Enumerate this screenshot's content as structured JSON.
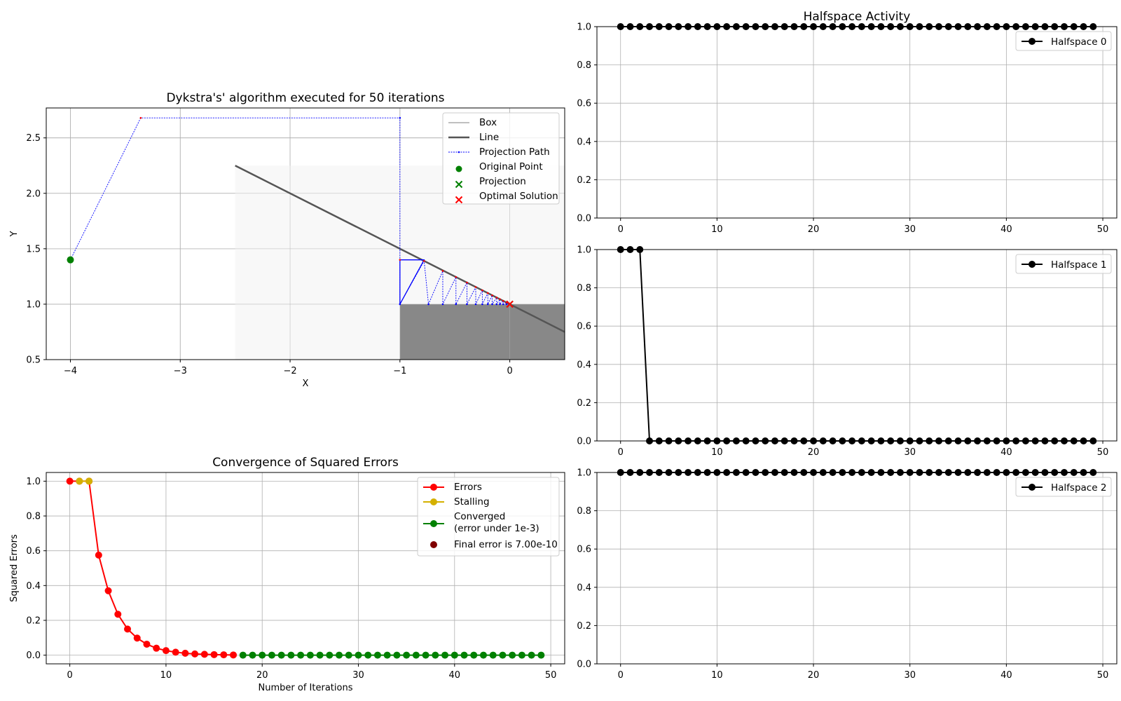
{
  "chart_data": [
    {
      "id": "dykstra",
      "type": "line",
      "title": "Dykstra's' algorithm executed for 50 iterations",
      "xlabel": "X",
      "ylabel": "Y",
      "xlim": [
        -4.22,
        0.5
      ],
      "ylim": [
        0.5,
        2.77
      ],
      "xticks": [
        -4,
        -3,
        -2,
        -1,
        0
      ],
      "xtick_labels": [
        "−4",
        "−3",
        "−2",
        "−1",
        "0"
      ],
      "yticks": [
        0.5,
        1.0,
        1.5,
        2.0,
        2.5
      ],
      "ytick_labels": [
        "0.5",
        "1.0",
        "1.5",
        "2.0",
        "2.5"
      ],
      "grid": true,
      "legend_position": "top-right",
      "legend": [
        "Box",
        "Line",
        "Projection Path",
        "Original Point",
        "Projection",
        "Optimal Solution"
      ],
      "box": {
        "x": [
          -2.5,
          0.5
        ],
        "y": [
          0.5,
          2.25
        ]
      },
      "halfspace_region": {
        "x": [
          -1,
          0.5
        ],
        "y": [
          0.5,
          1.0
        ]
      },
      "line": {
        "x": [
          -2.5,
          0.5
        ],
        "y": [
          2.25,
          0.75
        ],
        "slope": -0.5,
        "intercept": 1.0
      },
      "original_point": [
        -4,
        1.4
      ],
      "projection": [
        0,
        1
      ],
      "optimal_solution": [
        0,
        1
      ],
      "projection_path": [
        [
          -4,
          1.4
        ],
        [
          -3.36,
          2.68
        ],
        [
          -1,
          2.68
        ],
        [
          -1,
          1.4
        ],
        [
          -1,
          1.0
        ],
        [
          -0.78,
          1.39
        ],
        [
          -0.74,
          1.0
        ],
        [
          -0.61,
          1.3
        ],
        [
          -0.61,
          1.0
        ],
        [
          -0.49,
          1.245
        ],
        [
          -0.49,
          1.0
        ],
        [
          -0.39,
          1.195
        ],
        [
          -0.39,
          1.0
        ],
        [
          -0.31,
          1.155
        ],
        [
          -0.31,
          1.0
        ],
        [
          -0.25,
          1.125
        ],
        [
          -0.25,
          1.0
        ],
        [
          -0.2,
          1.1
        ],
        [
          -0.2,
          1.0
        ],
        [
          -0.16,
          1.08
        ],
        [
          -0.16,
          1.0
        ],
        [
          -0.12,
          1.06
        ],
        [
          -0.12,
          1.0
        ],
        [
          -0.09,
          1.045
        ],
        [
          -0.09,
          1.0
        ],
        [
          -0.06,
          1.03
        ],
        [
          -0.06,
          1.0
        ],
        [
          -0.03,
          1.015
        ],
        [
          -0.03,
          1.0
        ],
        [
          0,
          1.0
        ]
      ],
      "solid_path": [
        [
          -1,
          1.4
        ],
        [
          -0.78,
          1.4
        ],
        [
          -1,
          1.0
        ],
        [
          -1,
          1.4
        ]
      ],
      "colors": {
        "box_fill": "#f8f8f8",
        "halfspace_fill": "#888888",
        "line": "#555555",
        "path": "#0000ff",
        "original": "#008000",
        "projection": "#008000",
        "optimal": "#ff0000"
      }
    },
    {
      "id": "errors",
      "type": "line",
      "title": "Convergence of Squared Errors",
      "xlabel": "Number of Iterations",
      "ylabel": "Squared Errors",
      "xlim": [
        -2.45,
        51.45
      ],
      "ylim": [
        -0.05,
        1.05
      ],
      "xticks": [
        0,
        10,
        20,
        30,
        40,
        50
      ],
      "yticks": [
        0.0,
        0.2,
        0.4,
        0.6,
        0.8,
        1.0
      ],
      "ytick_labels": [
        "0.0",
        "0.2",
        "0.4",
        "0.6",
        "0.8",
        "1.0"
      ],
      "grid": true,
      "legend_position": "top-right",
      "series": [
        {
          "name": "Errors",
          "color": "#ff0000",
          "x": [
            0,
            1,
            2,
            3,
            4,
            5,
            6,
            7,
            8,
            9,
            10,
            11,
            12,
            13,
            14,
            15,
            16,
            17
          ],
          "values": [
            1.0,
            1.0,
            1.0,
            0.575,
            0.37,
            0.235,
            0.15,
            0.098,
            0.063,
            0.04,
            0.026,
            0.017,
            0.011,
            0.007,
            0.005,
            0.003,
            0.002,
            0.001
          ]
        },
        {
          "name": "Stalling",
          "color": "#d4b000",
          "x": [
            1,
            2
          ],
          "values": [
            1.0,
            1.0
          ]
        },
        {
          "name": "Converged\n(error under 1e-3)",
          "color": "#008000",
          "x": [
            18,
            19,
            20,
            21,
            22,
            23,
            24,
            25,
            26,
            27,
            28,
            29,
            30,
            31,
            32,
            33,
            34,
            35,
            36,
            37,
            38,
            39,
            40,
            41,
            42,
            43,
            44,
            45,
            46,
            47,
            48,
            49
          ],
          "values": [
            0,
            0,
            0,
            0,
            0,
            0,
            0,
            0,
            0,
            0,
            0,
            0,
            0,
            0,
            0,
            0,
            0,
            0,
            0,
            0,
            0,
            0,
            0,
            0,
            0,
            0,
            0,
            0,
            0,
            0,
            0,
            0
          ]
        },
        {
          "name": "Final error is 7.00e-10",
          "color": "#800000",
          "x": [],
          "values": []
        }
      ]
    },
    {
      "id": "hs0",
      "type": "line",
      "title": "Halfspace Activity",
      "xlim": [
        -2.45,
        51.45
      ],
      "ylim": [
        0.0,
        1.0
      ],
      "xticks": [
        0,
        10,
        20,
        30,
        40,
        50
      ],
      "yticks": [
        0.0,
        0.2,
        0.4,
        0.6,
        0.8,
        1.0
      ],
      "ytick_labels": [
        "0.0",
        "0.2",
        "0.4",
        "0.6",
        "0.8",
        "1.0"
      ],
      "grid": true,
      "legend_position": "top-right",
      "series": [
        {
          "name": "Halfspace 0",
          "color": "#000000",
          "values": [
            1,
            1,
            1,
            1,
            1,
            1,
            1,
            1,
            1,
            1,
            1,
            1,
            1,
            1,
            1,
            1,
            1,
            1,
            1,
            1,
            1,
            1,
            1,
            1,
            1,
            1,
            1,
            1,
            1,
            1,
            1,
            1,
            1,
            1,
            1,
            1,
            1,
            1,
            1,
            1,
            1,
            1,
            1,
            1,
            1,
            1,
            1,
            1,
            1,
            1
          ]
        }
      ]
    },
    {
      "id": "hs1",
      "type": "line",
      "title": "",
      "xlim": [
        -2.45,
        51.45
      ],
      "ylim": [
        0.0,
        1.0
      ],
      "xticks": [
        0,
        10,
        20,
        30,
        40,
        50
      ],
      "yticks": [
        0.0,
        0.2,
        0.4,
        0.6,
        0.8,
        1.0
      ],
      "ytick_labels": [
        "0.0",
        "0.2",
        "0.4",
        "0.6",
        "0.8",
        "1.0"
      ],
      "grid": true,
      "legend_position": "top-right",
      "series": [
        {
          "name": "Halfspace 1",
          "color": "#000000",
          "values": [
            1,
            1,
            1,
            0,
            0,
            0,
            0,
            0,
            0,
            0,
            0,
            0,
            0,
            0,
            0,
            0,
            0,
            0,
            0,
            0,
            0,
            0,
            0,
            0,
            0,
            0,
            0,
            0,
            0,
            0,
            0,
            0,
            0,
            0,
            0,
            0,
            0,
            0,
            0,
            0,
            0,
            0,
            0,
            0,
            0,
            0,
            0,
            0,
            0,
            0
          ]
        }
      ]
    },
    {
      "id": "hs2",
      "type": "line",
      "title": "",
      "xlim": [
        -2.45,
        51.45
      ],
      "ylim": [
        0.0,
        1.0
      ],
      "xticks": [
        0,
        10,
        20,
        30,
        40,
        50
      ],
      "yticks": [
        0.0,
        0.2,
        0.4,
        0.6,
        0.8,
        1.0
      ],
      "ytick_labels": [
        "0.0",
        "0.2",
        "0.4",
        "0.6",
        "0.8",
        "1.0"
      ],
      "grid": true,
      "legend_position": "top-right",
      "series": [
        {
          "name": "Halfspace 2",
          "color": "#000000",
          "values": [
            1,
            1,
            1,
            1,
            1,
            1,
            1,
            1,
            1,
            1,
            1,
            1,
            1,
            1,
            1,
            1,
            1,
            1,
            1,
            1,
            1,
            1,
            1,
            1,
            1,
            1,
            1,
            1,
            1,
            1,
            1,
            1,
            1,
            1,
            1,
            1,
            1,
            1,
            1,
            1,
            1,
            1,
            1,
            1,
            1,
            1,
            1,
            1,
            1,
            1
          ]
        }
      ]
    }
  ]
}
